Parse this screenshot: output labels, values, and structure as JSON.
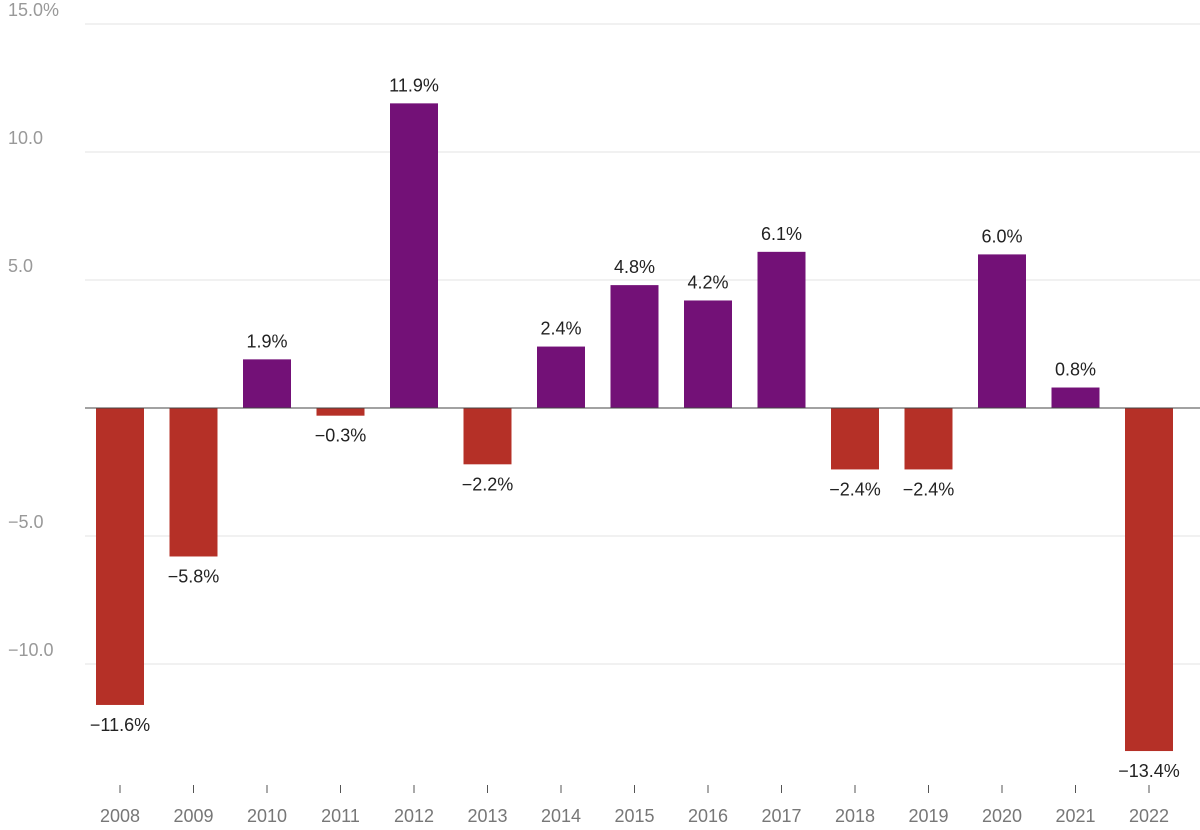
{
  "chart_data": {
    "type": "bar",
    "title": "",
    "xlabel": "",
    "ylabel": "",
    "ylim": [
      -14,
      15
    ],
    "y_ticks": [
      {
        "value": 15,
        "label": "15.0%"
      },
      {
        "value": 10,
        "label": "10.0"
      },
      {
        "value": 5,
        "label": "5.0"
      },
      {
        "value": -5,
        "label": "−5.0"
      },
      {
        "value": -10,
        "label": "−10.0"
      }
    ],
    "categories": [
      "2008",
      "2009",
      "2010",
      "2011",
      "2012",
      "2013",
      "2014",
      "2015",
      "2016",
      "2017",
      "2018",
      "2019",
      "2020",
      "2021",
      "2022"
    ],
    "values": [
      -11.6,
      -5.8,
      1.9,
      -0.3,
      11.9,
      -2.2,
      2.4,
      4.8,
      4.2,
      6.1,
      -2.4,
      -2.4,
      6.0,
      0.8,
      -13.4
    ],
    "data_labels": [
      "−11.6%",
      "−5.8%",
      "1.9%",
      "−0.3%",
      "11.9%",
      "−2.2%",
      "2.4%",
      "4.8%",
      "4.2%",
      "6.1%",
      "−2.4%",
      "−2.4%",
      "6.0%",
      "0.8%",
      "−13.4%"
    ],
    "colors": {
      "positive": "#731177",
      "negative": "#b53027"
    },
    "grid": true,
    "legend": "none"
  }
}
